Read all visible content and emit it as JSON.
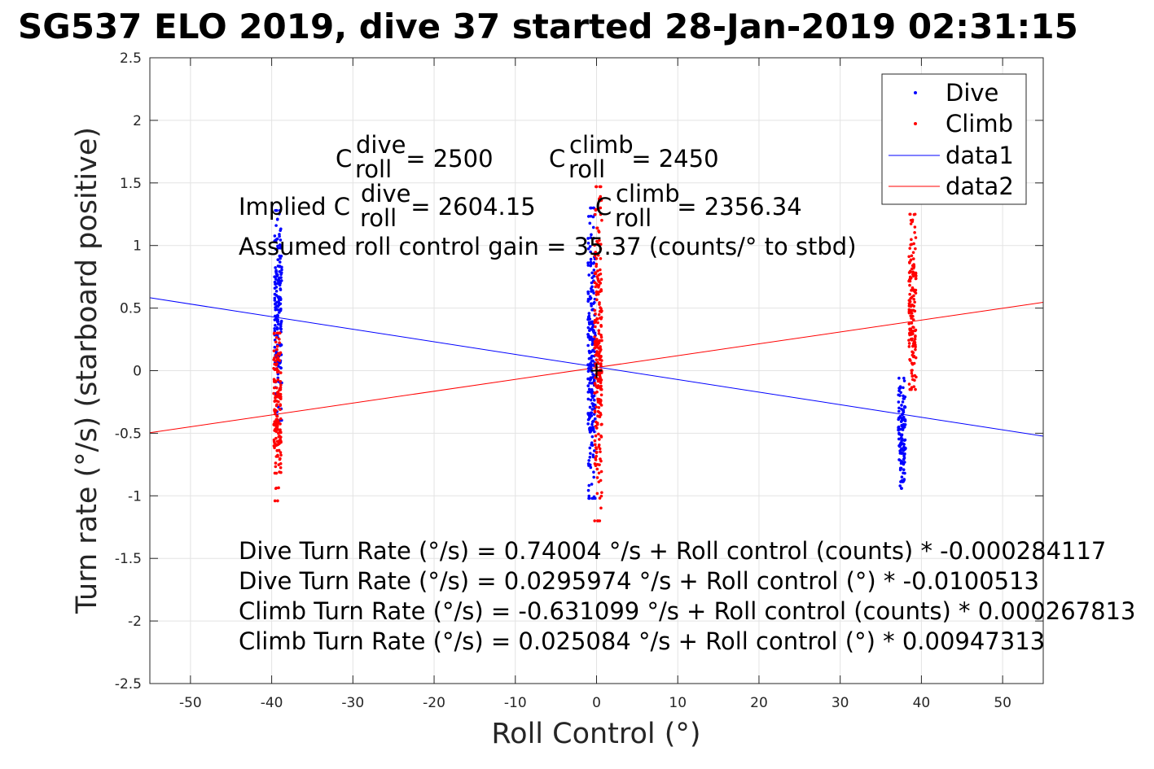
{
  "chart_data": {
    "type": "scatter",
    "title": "SG537 ELO 2019, dive 37 started 28-Jan-2019 02:31:15",
    "xlabel": "Roll Control (°)",
    "ylabel": "Turn rate (°/s) (starboard positive)",
    "xlim": [
      -55,
      55
    ],
    "ylim": [
      -2.5,
      2.5
    ],
    "xticks": [
      -50,
      -40,
      -30,
      -20,
      -10,
      0,
      10,
      20,
      30,
      40,
      50
    ],
    "xtick_labels": [
      "-50",
      "-40",
      "-30",
      "-20",
      "-10",
      "0",
      "10",
      "20",
      "30",
      "40",
      "50"
    ],
    "yticks": [
      -2.5,
      -2,
      -1.5,
      -1,
      -0.5,
      0,
      0.5,
      1,
      1.5,
      2,
      2.5
    ],
    "ytick_labels": [
      "-2.5",
      "-2",
      "-1.5",
      "-1",
      "-0.5",
      "0",
      "0.5",
      "1",
      "1.5",
      "2",
      "2.5"
    ],
    "grid": true,
    "legend": "top-right",
    "legend_entries": [
      "Dive",
      "Climb",
      "data1",
      "data2"
    ],
    "colors": {
      "dive": "#0000ff",
      "climb": "#ff0000",
      "axis": "#262626",
      "grid": "#e3e3e3"
    },
    "series": [
      {
        "name": "Dive",
        "kind": "scatter",
        "color": "#0000ff",
        "clusters": [
          {
            "x": -39.2,
            "y_min": -0.4,
            "y_max": 1.28
          },
          {
            "x": -0.6,
            "y_min": -1.02,
            "y_max": 1.3
          },
          {
            "x": 37.6,
            "y_min": -0.94,
            "y_max": -0.06
          }
        ]
      },
      {
        "name": "Climb",
        "kind": "scatter",
        "color": "#ff0000",
        "clusters": [
          {
            "x": -39.3,
            "y_min": -1.04,
            "y_max": 0.3
          },
          {
            "x": 0.2,
            "y_min": -1.2,
            "y_max": 1.47
          },
          {
            "x": 38.9,
            "y_min": -0.15,
            "y_max": 1.25
          }
        ]
      },
      {
        "name": "data1",
        "kind": "line",
        "color": "#0000ff",
        "x": [
          -55,
          55
        ],
        "y": [
          0.5824,
          -0.5232
        ]
      },
      {
        "name": "data2",
        "kind": "line",
        "color": "#ff0000",
        "x": [
          -55,
          55
        ],
        "y": [
          -0.4959,
          0.5461
        ]
      }
    ],
    "origin_marker": {
      "x": 0,
      "y": 0
    },
    "annotations": {
      "c_dive_base": "C",
      "c_dive_sup": "dive",
      "c_dive_sub": "roll",
      "c_dive_value": " = 2500",
      "c_climb_base": "C",
      "c_climb_sup": "climb",
      "c_climb_sub": "roll",
      "c_climb_value": " = 2450",
      "implied_prefix": "Implied C",
      "implied_dive_sup": "dive",
      "implied_dive_sub": "roll",
      "implied_dive_value": " = 2604.15",
      "implied_climb_base": "C",
      "implied_climb_sup": "climb",
      "implied_climb_sub": "roll",
      "implied_climb_value": " = 2356.34",
      "gain": "Assumed roll control gain = 35.37 (counts/° to stbd)",
      "eq1": "Dive Turn Rate (°/s) = 0.74004 °/s + Roll control (counts) * -0.000284117",
      "eq2": "Dive Turn Rate (°/s) = 0.0295974 °/s + Roll control (°) * -0.0100513",
      "eq3": "Climb Turn Rate (°/s) = -0.631099 °/s + Roll control (counts) * 0.000267813",
      "eq4": "Climb Turn Rate (°/s) = 0.025084 °/s + Roll control (°) * 0.00947313"
    }
  }
}
